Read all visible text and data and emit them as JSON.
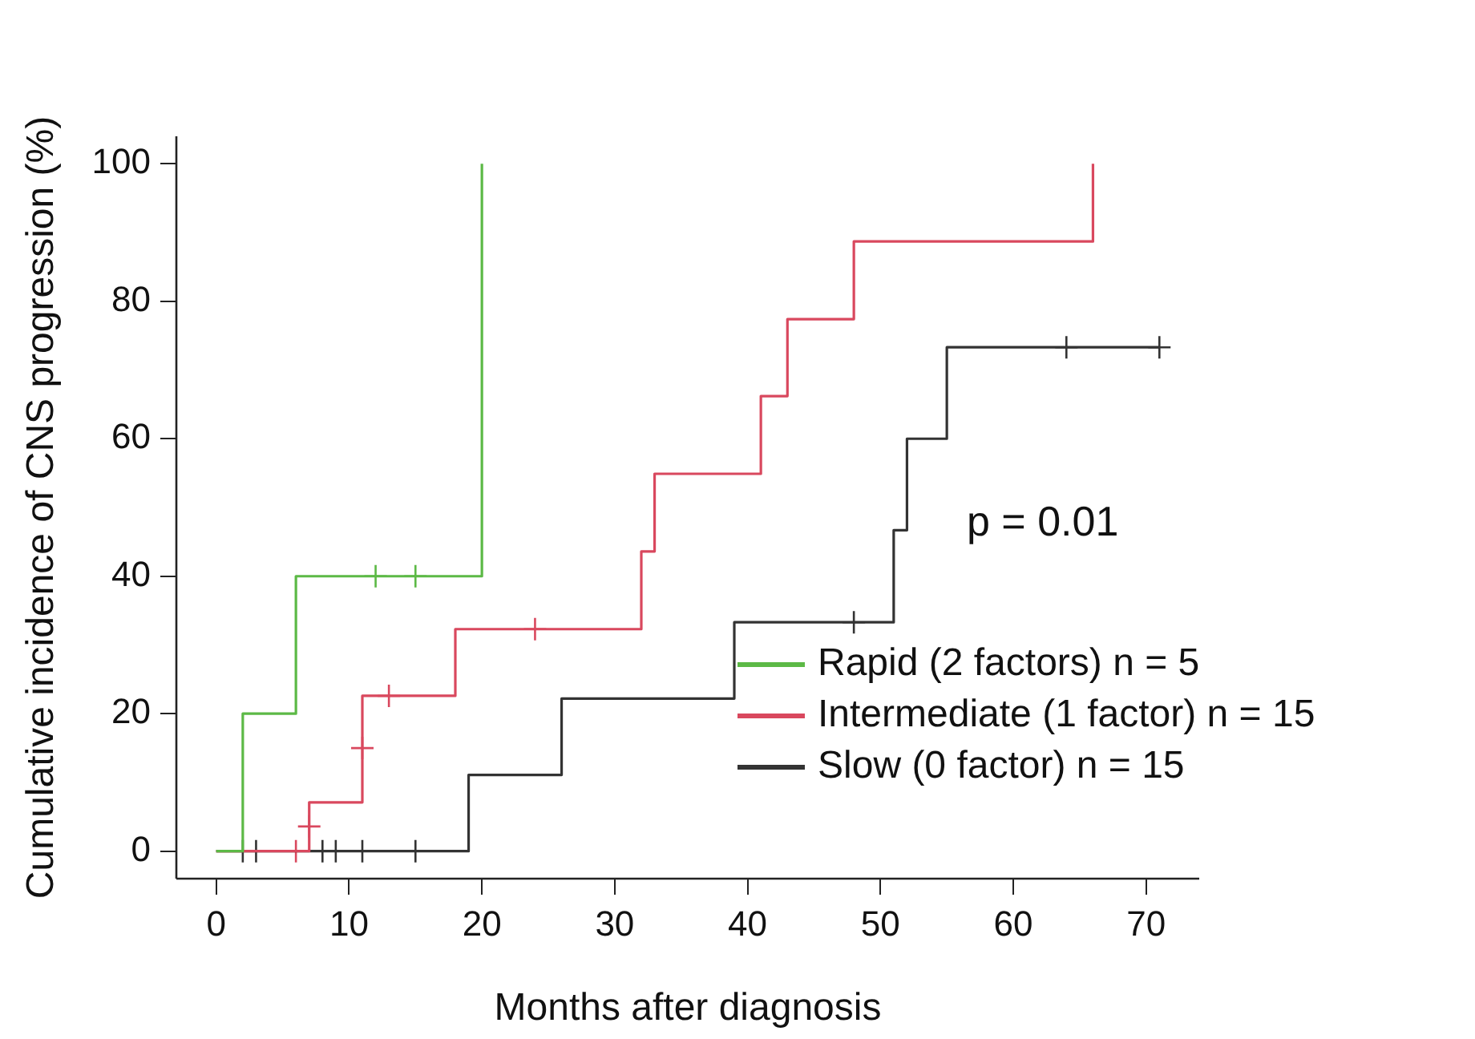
{
  "chart_data": {
    "type": "step",
    "xlabel": "Months after diagnosis",
    "ylabel": "Cumulative incidence of CNS progression (%)",
    "xlim": [
      -3,
      74
    ],
    "xticks": [
      0,
      10,
      20,
      30,
      40,
      50,
      60,
      70
    ],
    "ylim": [
      -4,
      104
    ],
    "yticks": [
      0,
      20,
      40,
      60,
      80,
      100
    ],
    "grid": false,
    "legend": "bottom right",
    "annotations": [
      "p = 0.01"
    ],
    "series": [
      {
        "name": "Rapid (2 factors)  n = 5",
        "color": "#5cb946",
        "x": [
          0,
          2,
          6,
          20
        ],
        "values": [
          0,
          20,
          40,
          100
        ]
      },
      {
        "name": "Intermediate (1 factor)  n = 15",
        "color": "#d9485e",
        "x": [
          0,
          7,
          11,
          18,
          32,
          33,
          41,
          43,
          48,
          66
        ],
        "values": [
          0,
          7.1,
          22.6,
          32.3,
          43.6,
          54.9,
          66.2,
          77.4,
          88.7,
          100
        ]
      },
      {
        "name": "Slow (0 factor)  n = 15",
        "color": "#333333",
        "x": [
          0,
          19,
          26,
          39,
          51,
          52,
          55,
          71
        ],
        "values": [
          0,
          11.1,
          22.2,
          33.3,
          46.7,
          60,
          73.3,
          73.3
        ]
      },
      {
        "type": "scatter",
        "marker": "cross",
        "color": "#5cb946",
        "x": [
          12,
          15
        ],
        "values": [
          40,
          40
        ]
      },
      {
        "type": "scatter",
        "marker": "cross",
        "color": "#d9485e",
        "x": [
          6,
          7,
          11,
          13,
          24
        ],
        "values": [
          0,
          3.6,
          15,
          22.6,
          32.3
        ]
      },
      {
        "type": "scatter",
        "marker": "cross",
        "color": "#333333",
        "x": [
          2,
          3,
          8,
          9,
          11,
          15,
          48,
          64,
          71
        ],
        "values": [
          0,
          0,
          0,
          0,
          0,
          0,
          33.3,
          73.3,
          73.3
        ]
      }
    ]
  }
}
